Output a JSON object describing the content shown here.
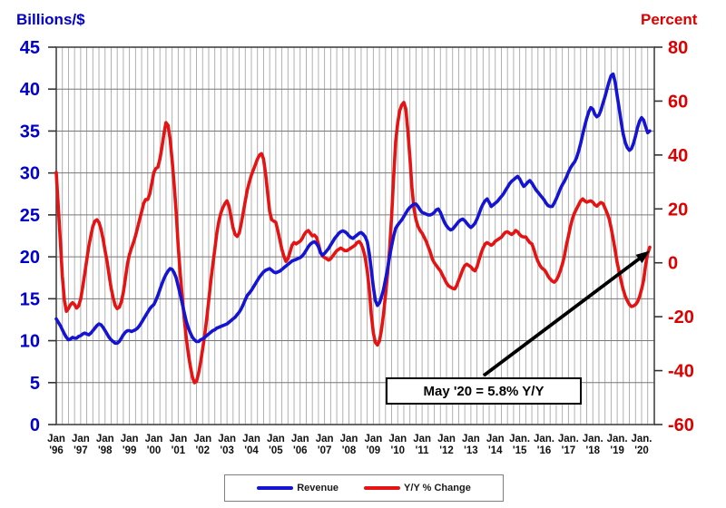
{
  "chart_data": {
    "type": "line",
    "title": "",
    "ylabel_left": "Billions/$",
    "ylabel_right": "Percent",
    "x_start": "1996-01",
    "x_end": "2020-05",
    "sampling": "monthly",
    "grid": "quarterly vertical, 5-unit horizontal",
    "ylim_left": [
      0,
      45
    ],
    "ylim_right": [
      -60,
      80
    ],
    "left_ticks": [
      0,
      5,
      10,
      15,
      20,
      25,
      30,
      35,
      40,
      45
    ],
    "right_ticks": [
      -60,
      -40,
      -20,
      0,
      20,
      40,
      60,
      80
    ],
    "x_tick_top": [
      "Jan",
      "Jan",
      "Jan",
      "Jan",
      "Jan",
      "Jan",
      "Jan",
      "Jan",
      "Jan",
      "Jan",
      "Jan",
      "Jan",
      "Jan",
      "Jan",
      "Jan",
      "Jan",
      "Jan",
      "Jan",
      "Jan",
      "Jan.",
      "Jan.",
      "Jan.",
      "Jan.",
      "Jan.",
      "Jan."
    ],
    "x_tick_bottom": [
      "'96",
      "'97",
      "'98",
      "'99",
      "'00",
      "'01",
      "'02",
      "'03",
      "'04",
      "'05",
      "'06",
      "'07",
      "'08",
      "'09",
      "'10",
      "'11",
      "'12",
      "'13",
      "'14",
      "'15",
      "'16",
      "'17",
      "'18",
      "'19",
      "'20"
    ],
    "annotation": {
      "text": "May '20 = 5.8% Y/Y"
    },
    "colors": {
      "revenue": "#1414d2",
      "yoy": "#e41414",
      "axis_left_labels": "#0000cc",
      "axis_right_labels": "#dd0000",
      "x_labels": "#111111",
      "grid_v": "#a8a8a8",
      "grid_h": "#777777",
      "frame": "#444444"
    },
    "series": [
      {
        "name": "Revenue",
        "axis": "left",
        "color": "#1414d2",
        "values": [
          12.6,
          12.2,
          11.8,
          11.3,
          10.8,
          10.4,
          10.1,
          10.2,
          10.4,
          10.3,
          10.3,
          10.5,
          10.6,
          10.8,
          10.9,
          10.8,
          10.7,
          10.9,
          11.2,
          11.5,
          11.8,
          12.0,
          11.9,
          11.6,
          11.2,
          10.8,
          10.4,
          10.1,
          9.9,
          9.7,
          9.7,
          9.9,
          10.3,
          10.7,
          11.0,
          11.2,
          11.2,
          11.1,
          11.2,
          11.3,
          11.5,
          11.8,
          12.2,
          12.6,
          13.0,
          13.4,
          13.8,
          14.1,
          14.3,
          14.8,
          15.4,
          16.1,
          16.8,
          17.4,
          17.9,
          18.3,
          18.6,
          18.5,
          18.1,
          17.5,
          16.5,
          15.5,
          14.4,
          13.3,
          12.3,
          11.5,
          10.9,
          10.4,
          10.1,
          9.9,
          9.9,
          10.1,
          10.2,
          10.4,
          10.6,
          10.8,
          11.0,
          11.2,
          11.3,
          11.5,
          11.6,
          11.7,
          11.8,
          11.9,
          12.0,
          12.2,
          12.4,
          12.6,
          12.8,
          13.1,
          13.4,
          13.8,
          14.3,
          14.9,
          15.4,
          15.7,
          16.0,
          16.4,
          16.8,
          17.2,
          17.6,
          17.9,
          18.2,
          18.4,
          18.5,
          18.6,
          18.4,
          18.2,
          18.1,
          18.2,
          18.3,
          18.5,
          18.7,
          18.9,
          19.1,
          19.3,
          19.5,
          19.6,
          19.7,
          19.8,
          19.9,
          20.1,
          20.4,
          20.8,
          21.2,
          21.5,
          21.7,
          21.8,
          21.6,
          21.2,
          20.5,
          20.2,
          20.4,
          20.7,
          21.0,
          21.4,
          21.8,
          22.2,
          22.5,
          22.8,
          23.0,
          23.1,
          23.0,
          22.8,
          22.5,
          22.3,
          22.2,
          22.4,
          22.6,
          22.8,
          22.9,
          22.7,
          22.4,
          21.8,
          20.4,
          18.5,
          16.4,
          14.8,
          14.2,
          14.5,
          15.2,
          16.1,
          17.3,
          18.6,
          20.0,
          21.3,
          22.5,
          23.4,
          23.8,
          24.1,
          24.4,
          24.8,
          25.2,
          25.6,
          25.9,
          26.1,
          26.3,
          26.3,
          26.0,
          25.6,
          25.3,
          25.2,
          25.1,
          25.0,
          25.0,
          25.1,
          25.3,
          25.6,
          25.7,
          25.3,
          24.7,
          24.1,
          23.7,
          23.4,
          23.2,
          23.3,
          23.6,
          23.9,
          24.2,
          24.4,
          24.5,
          24.3,
          24.0,
          23.7,
          23.5,
          23.7,
          24.0,
          24.5,
          25.1,
          25.8,
          26.3,
          26.7,
          26.9,
          26.5,
          26.0,
          26.2,
          26.4,
          26.6,
          26.9,
          27.2,
          27.5,
          27.9,
          28.3,
          28.7,
          29.0,
          29.2,
          29.4,
          29.6,
          29.3,
          28.8,
          28.4,
          28.6,
          28.9,
          29.1,
          28.8,
          28.4,
          28.0,
          27.7,
          27.4,
          27.1,
          26.8,
          26.4,
          26.1,
          26.0,
          26.0,
          26.4,
          26.9,
          27.5,
          28.1,
          28.6,
          29.0,
          29.5,
          30.1,
          30.6,
          31.0,
          31.3,
          31.8,
          32.6,
          33.5,
          34.6,
          35.6,
          36.5,
          37.3,
          37.8,
          37.6,
          37.0,
          36.7,
          36.9,
          37.5,
          38.3,
          39.1,
          40.0,
          40.9,
          41.6,
          41.8,
          40.8,
          39.2,
          37.6,
          36.0,
          34.6,
          33.6,
          33.0,
          32.7,
          32.9,
          33.5,
          34.4,
          35.4,
          36.2,
          36.6,
          36.3,
          35.5,
          34.8,
          35.0
        ]
      },
      {
        "name": "Y/Y % Change",
        "axis": "right",
        "color": "#e41414",
        "values": [
          33.5,
          21.0,
          8.0,
          -5.0,
          -14.0,
          -18.0,
          -17.0,
          -15.5,
          -14.8,
          -15.5,
          -16.8,
          -16.0,
          -13.5,
          -9.0,
          -4.0,
          1.0,
          6.0,
          10.0,
          13.5,
          15.5,
          16.0,
          15.0,
          12.5,
          9.0,
          4.5,
          0.5,
          -4.5,
          -9.5,
          -13.0,
          -15.8,
          -17.0,
          -16.5,
          -14.5,
          -11.0,
          -6.0,
          -0.5,
          3.0,
          5.5,
          7.5,
          10.0,
          13.0,
          16.0,
          19.0,
          22.0,
          23.5,
          23.5,
          25.5,
          29.5,
          33.5,
          35.0,
          35.5,
          38.5,
          43.0,
          48.0,
          52.0,
          51.0,
          46.0,
          38.0,
          29.0,
          19.0,
          6.0,
          -4.0,
          -13.0,
          -21.0,
          -28.0,
          -34.0,
          -38.5,
          -42.5,
          -44.5,
          -44.0,
          -41.0,
          -37.0,
          -32.0,
          -27.0,
          -21.0,
          -14.0,
          -7.0,
          -1.0,
          5.0,
          11.0,
          15.5,
          18.5,
          20.5,
          22.0,
          23.0,
          21.0,
          17.0,
          13.0,
          10.5,
          9.8,
          11.0,
          14.5,
          18.5,
          23.0,
          27.0,
          30.0,
          32.5,
          34.5,
          36.5,
          38.5,
          40.0,
          40.5,
          38.5,
          33.0,
          26.0,
          19.0,
          16.0,
          15.5,
          15.0,
          12.0,
          8.5,
          5.0,
          2.5,
          0.5,
          1.5,
          4.0,
          6.5,
          7.5,
          7.0,
          7.5,
          8.0,
          9.0,
          10.5,
          11.5,
          12.0,
          11.0,
          10.0,
          10.3,
          9.5,
          7.0,
          4.0,
          2.5,
          2.0,
          1.5,
          1.0,
          1.5,
          2.5,
          3.5,
          4.5,
          5.0,
          5.5,
          5.0,
          4.5,
          4.5,
          5.0,
          5.5,
          6.0,
          6.5,
          7.5,
          7.9,
          7.0,
          5.0,
          2.0,
          -3.0,
          -10.0,
          -19.0,
          -26.0,
          -29.5,
          -30.5,
          -29.0,
          -25.0,
          -19.0,
          -12.0,
          -4.0,
          5.0,
          17.0,
          32.0,
          45.0,
          52.0,
          56.5,
          58.5,
          59.5,
          57.0,
          49.0,
          39.0,
          28.0,
          20.0,
          16.0,
          13.5,
          12.0,
          11.0,
          9.5,
          8.0,
          6.0,
          4.0,
          1.5,
          0.0,
          -1.0,
          -2.0,
          -3.0,
          -4.5,
          -6.0,
          -7.5,
          -8.5,
          -9.0,
          -9.5,
          -9.7,
          -8.5,
          -6.5,
          -4.5,
          -2.5,
          -1.0,
          -0.5,
          -1.0,
          -1.5,
          -2.5,
          -3.0,
          -1.5,
          1.0,
          3.5,
          5.5,
          7.0,
          7.5,
          7.0,
          6.5,
          7.0,
          8.0,
          8.5,
          9.0,
          9.5,
          10.5,
          11.3,
          11.5,
          11.0,
          10.5,
          11.0,
          12.0,
          11.5,
          10.5,
          9.8,
          9.6,
          9.6,
          8.5,
          7.5,
          7.0,
          5.0,
          2.5,
          0.5,
          -1.0,
          -2.0,
          -2.5,
          -3.5,
          -5.0,
          -6.0,
          -6.8,
          -7.2,
          -6.5,
          -5.0,
          -3.0,
          -0.5,
          2.5,
          6.5,
          10.0,
          13.5,
          16.5,
          18.5,
          20.0,
          21.5,
          23.0,
          23.7,
          23.0,
          22.5,
          22.8,
          23.0,
          22.5,
          21.5,
          21.0,
          21.8,
          22.4,
          22.0,
          20.3,
          18.5,
          16.4,
          13.0,
          9.0,
          4.6,
          0.0,
          -3.5,
          -7.0,
          -10.0,
          -12.5,
          -14.1,
          -15.5,
          -16.2,
          -16.0,
          -15.5,
          -14.5,
          -12.5,
          -9.8,
          -6.5,
          -0.7,
          3.5,
          5.8
        ]
      }
    ],
    "legend_position": "bottom-center"
  }
}
